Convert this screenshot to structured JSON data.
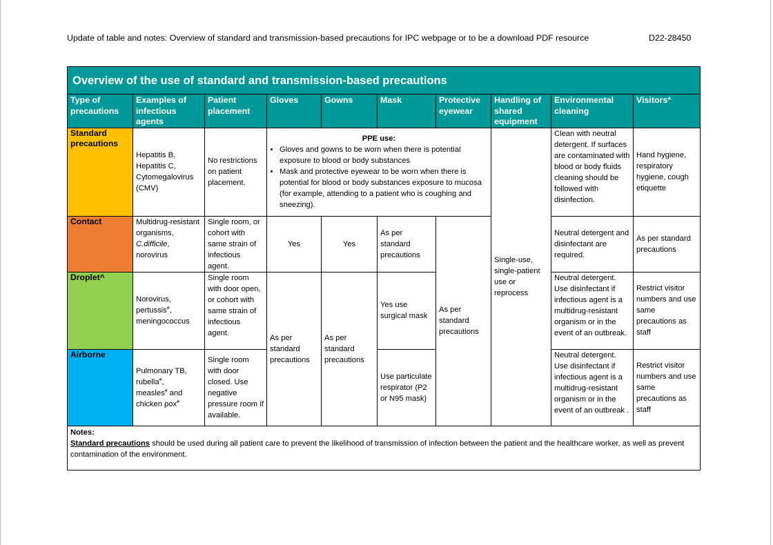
{
  "header": {
    "title": "Update of table and notes: Overview of standard and transmission-based precautions for IPC webpage or to be a download PDF resource",
    "ref": "D22-28450"
  },
  "table": {
    "title": "Overview of the use of standard and transmission-based precautions",
    "columns": [
      "Type of precautions",
      "Examples of infectious agents",
      "Patient placement",
      "Gloves",
      "Gowns",
      "Mask",
      "Protective eyewear",
      "Handling of shared equipment",
      "Environmental cleaning",
      "Visitors*"
    ],
    "colors": {
      "header": "#009999",
      "standard": "#ffc000",
      "contact": "#ed7d31",
      "droplet": "#92d050",
      "airborne": "#00b0f0"
    },
    "standard": {
      "type": "Standard precautions",
      "examples": "Hepatitis B, Hepatitis C, Cytomegalovirus (CMV)",
      "placement": "No restrictions on patient placement.",
      "ppe_title": "PPE use",
      "ppe_items": [
        "Gloves and gowns to be worn when there is potential exposure to blood or body substances",
        "Mask and protective eyewear to be worn when there is potential for blood or body substances exposure to mucosa (for example, attending to a patient who is coughing and sneezing)."
      ],
      "cleaning": "Clean with neutral detergent. If surfaces are contaminated with blood or body fluids cleaning should be followed with disinfection.",
      "visitors": "Hand hygiene, respiratory hygiene, cough etiquette"
    },
    "handling_all": "Single-use, single-patient use or reprocess",
    "eyewear_tbp": "As per standard precautions",
    "contact": {
      "type": "Contact",
      "examples_pre": "Multidrug-resistant organisms,",
      "examples_italic": "C.difficile",
      "examples_post": ", norovirus",
      "placement": "Single room, or cohort with same strain of infectious agent.",
      "gloves": "Yes",
      "gowns": "Yes",
      "mask": "As per standard precautions",
      "cleaning": "Neutral detergent and disinfectant are required.",
      "visitors": "As per standard precautions"
    },
    "droplet": {
      "type": "Droplet^",
      "examples": [
        "Norovirus,",
        "pertussis",
        "#",
        ",",
        "meningococcus"
      ],
      "placement": "Single room with door open, or cohort with same strain of infectious agent.",
      "mask": "Yes use surgical mask",
      "cleaning": "Neutral detergent. Use disinfectant if infectious agent is a multidrug-resistant organism or in the event of an outbreak.",
      "visitors": "Restrict visitor numbers and use same precautions as staff"
    },
    "gloves_gowns_tbp": "As per standard precautions",
    "airborne": {
      "type": "Airborne",
      "examples": [
        "Pulmonary TB,",
        "rubella",
        "#",
        ",",
        "measles",
        "#",
        " and chicken pox",
        "#"
      ],
      "placement": "Single room with door closed. Use negative pressure room if available.",
      "mask": "Use particulate respirator (P2 or N95 mask)",
      "cleaning": "Neutral detergent. Use disinfectant if infectious agent is a multidrug-resistant organism or in the event of an outbreak .",
      "visitors": "Restrict visitor numbers and use same precautions as staff"
    },
    "notes": {
      "label": "Notes:",
      "term": "Standard precautions",
      "text": " should be used during all patient care to prevent the likelihood of transmission of infection between the patient and the healthcare worker, as well as prevent contamination of the environment."
    }
  }
}
